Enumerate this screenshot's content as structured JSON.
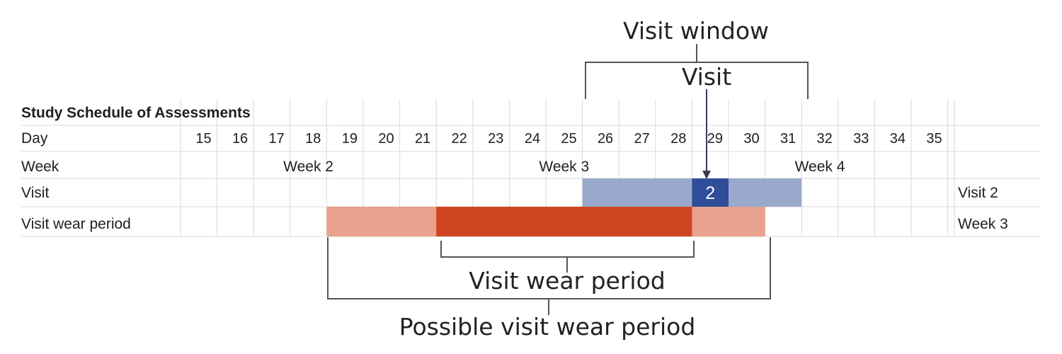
{
  "table": {
    "title": "Study Schedule of Assessments",
    "row_labels": {
      "day": "Day",
      "week": "Week",
      "visit": "Visit",
      "wear": "Visit wear period"
    },
    "days": [
      15,
      16,
      17,
      18,
      19,
      20,
      21,
      22,
      23,
      24,
      25,
      26,
      27,
      28,
      29,
      30,
      31,
      32,
      33,
      34,
      35
    ],
    "weeks": [
      {
        "label": "Week 2",
        "start_day": 15,
        "end_day": 21
      },
      {
        "label": "Week 3",
        "start_day": 22,
        "end_day": 28
      },
      {
        "label": "Week 4",
        "start_day": 29,
        "end_day": 35
      }
    ],
    "right_values": {
      "visit": "Visit 2",
      "wear": "Week 3"
    }
  },
  "bars": {
    "visit_window": {
      "start_day": 26,
      "end_day": 31,
      "color": "#99a9cc"
    },
    "visit_day": {
      "day": 29,
      "label": "2",
      "color": "#2f4d99"
    },
    "possible_wear": {
      "start_day": 19,
      "end_day": 30,
      "color": "#e8a28d"
    },
    "wear": {
      "start_day": 22,
      "end_day": 28,
      "color": "#cf4521"
    }
  },
  "annotations": {
    "visit_window": "Visit window",
    "visit": "Visit",
    "visit_wear_period": "Visit wear period",
    "possible_wear_period": "Possible visit wear period"
  }
}
